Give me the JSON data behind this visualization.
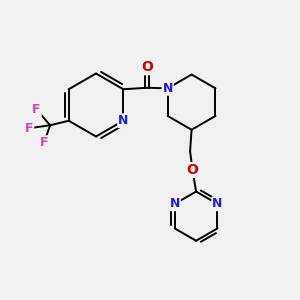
{
  "background_color": "#f0f0f0",
  "atom_colors": {
    "N": "#2020cc",
    "O": "#cc0000",
    "F": "#cc44cc",
    "C": "#000000"
  },
  "bond_lw": 1.4,
  "figsize": [
    3.0,
    3.0
  ],
  "dpi": 100,
  "xlim": [
    0,
    10
  ],
  "ylim": [
    0,
    10
  ]
}
